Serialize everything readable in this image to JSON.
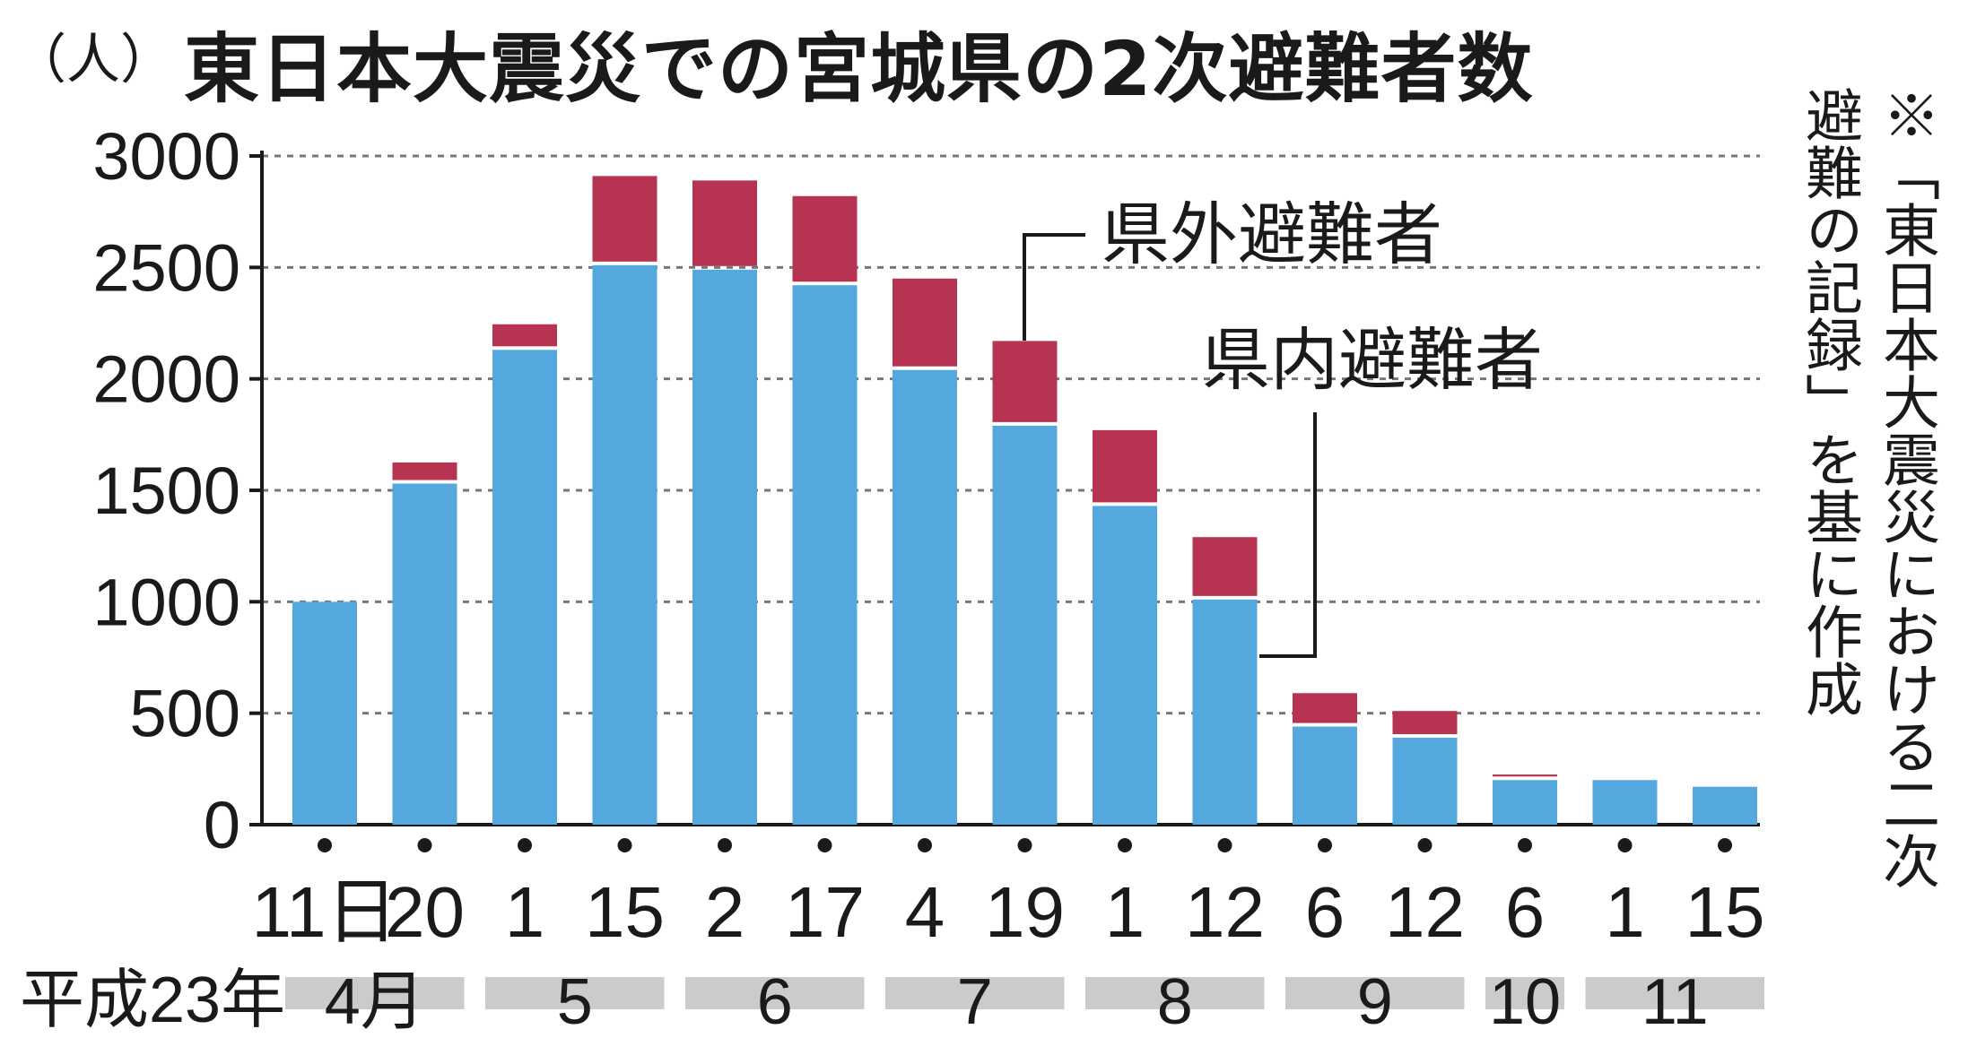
{
  "header": {
    "unit": "（人）",
    "title": "東日本大震災での宮城県の2次避難者数"
  },
  "note": {
    "line1": "※「東日本大震災における二次",
    "line2": "避難の記録」を基に作成"
  },
  "colors": {
    "inner": "#55a8dd",
    "outer": "#b73352",
    "month_band": "#cbcbcb",
    "grid": "#777777"
  },
  "chart_data": {
    "type": "bar",
    "stacked": true,
    "title": "東日本大震災での宮城県の2次避難者数",
    "ylabel": "（人）",
    "ylim": [
      0,
      3000
    ],
    "yticks": [
      0,
      500,
      1000,
      1500,
      2000,
      2500,
      3000
    ],
    "grid": true,
    "categories": [
      "11日",
      "20",
      "1",
      "15",
      "2",
      "17",
      "4",
      "19",
      "1",
      "12",
      "6",
      "12",
      "6",
      "1",
      "15"
    ],
    "era_label": "平成23年",
    "months": [
      {
        "label": "4月",
        "from": 0,
        "to": 1
      },
      {
        "label": "5",
        "from": 2,
        "to": 3
      },
      {
        "label": "6",
        "from": 4,
        "to": 5
      },
      {
        "label": "7",
        "from": 6,
        "to": 7
      },
      {
        "label": "8",
        "from": 8,
        "to": 9
      },
      {
        "label": "9",
        "from": 10,
        "to": 11
      },
      {
        "label": "10",
        "from": 12,
        "to": 12
      },
      {
        "label": "11",
        "from": 13,
        "to": 14
      }
    ],
    "series": [
      {
        "name": "県内避難者",
        "values": [
          1000,
          1530,
          2130,
          2510,
          2490,
          2420,
          2040,
          1790,
          1430,
          1010,
          440,
          390,
          200,
          200,
          170
        ]
      },
      {
        "name": "県外避難者",
        "values": [
          0,
          95,
          115,
          400,
          400,
          400,
          410,
          380,
          340,
          280,
          150,
          120,
          25,
          15,
          0
        ]
      }
    ]
  }
}
